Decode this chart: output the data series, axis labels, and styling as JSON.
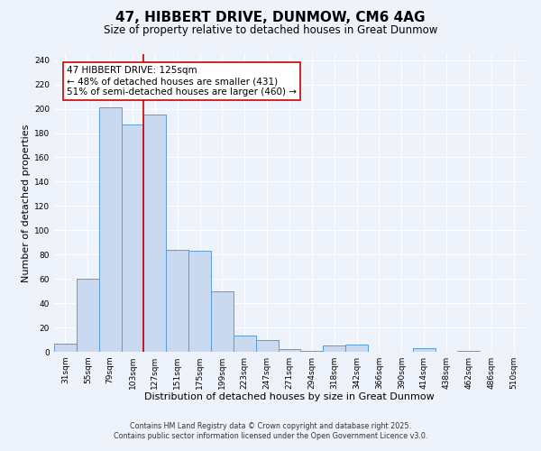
{
  "title": "47, HIBBERT DRIVE, DUNMOW, CM6 4AG",
  "subtitle": "Size of property relative to detached houses in Great Dunmow",
  "xlabel": "Distribution of detached houses by size in Great Dunmow",
  "ylabel": "Number of detached properties",
  "bar_labels": [
    "31sqm",
    "55sqm",
    "79sqm",
    "103sqm",
    "127sqm",
    "151sqm",
    "175sqm",
    "199sqm",
    "223sqm",
    "247sqm",
    "271sqm",
    "294sqm",
    "318sqm",
    "342sqm",
    "366sqm",
    "390sqm",
    "414sqm",
    "438sqm",
    "462sqm",
    "486sqm",
    "510sqm"
  ],
  "bar_values": [
    7,
    60,
    201,
    187,
    195,
    84,
    83,
    50,
    13,
    10,
    2,
    1,
    5,
    6,
    0,
    0,
    3,
    0,
    1,
    0,
    0
  ],
  "bar_color": "#c8d9f0",
  "bar_edge_color": "#5b9bd5",
  "vline_x_index": 3.5,
  "vline_color": "#cc0000",
  "annotation_line1": "47 HIBBERT DRIVE: 125sqm",
  "annotation_line2": "← 48% of detached houses are smaller (431)",
  "annotation_line3": "51% of semi-detached houses are larger (460) →",
  "annotation_box_color": "#ffffff",
  "annotation_box_edge": "#cc0000",
  "ylim": [
    0,
    245
  ],
  "yticks": [
    0,
    20,
    40,
    60,
    80,
    100,
    120,
    140,
    160,
    180,
    200,
    220,
    240
  ],
  "footer1": "Contains HM Land Registry data © Crown copyright and database right 2025.",
  "footer2": "Contains public sector information licensed under the Open Government Licence v3.0.",
  "bg_color": "#eef2fa",
  "title_fontsize": 11,
  "subtitle_fontsize": 8.5,
  "axis_label_fontsize": 8,
  "tick_fontsize": 6.5,
  "annotation_fontsize": 7.5,
  "footer_fontsize": 5.8
}
